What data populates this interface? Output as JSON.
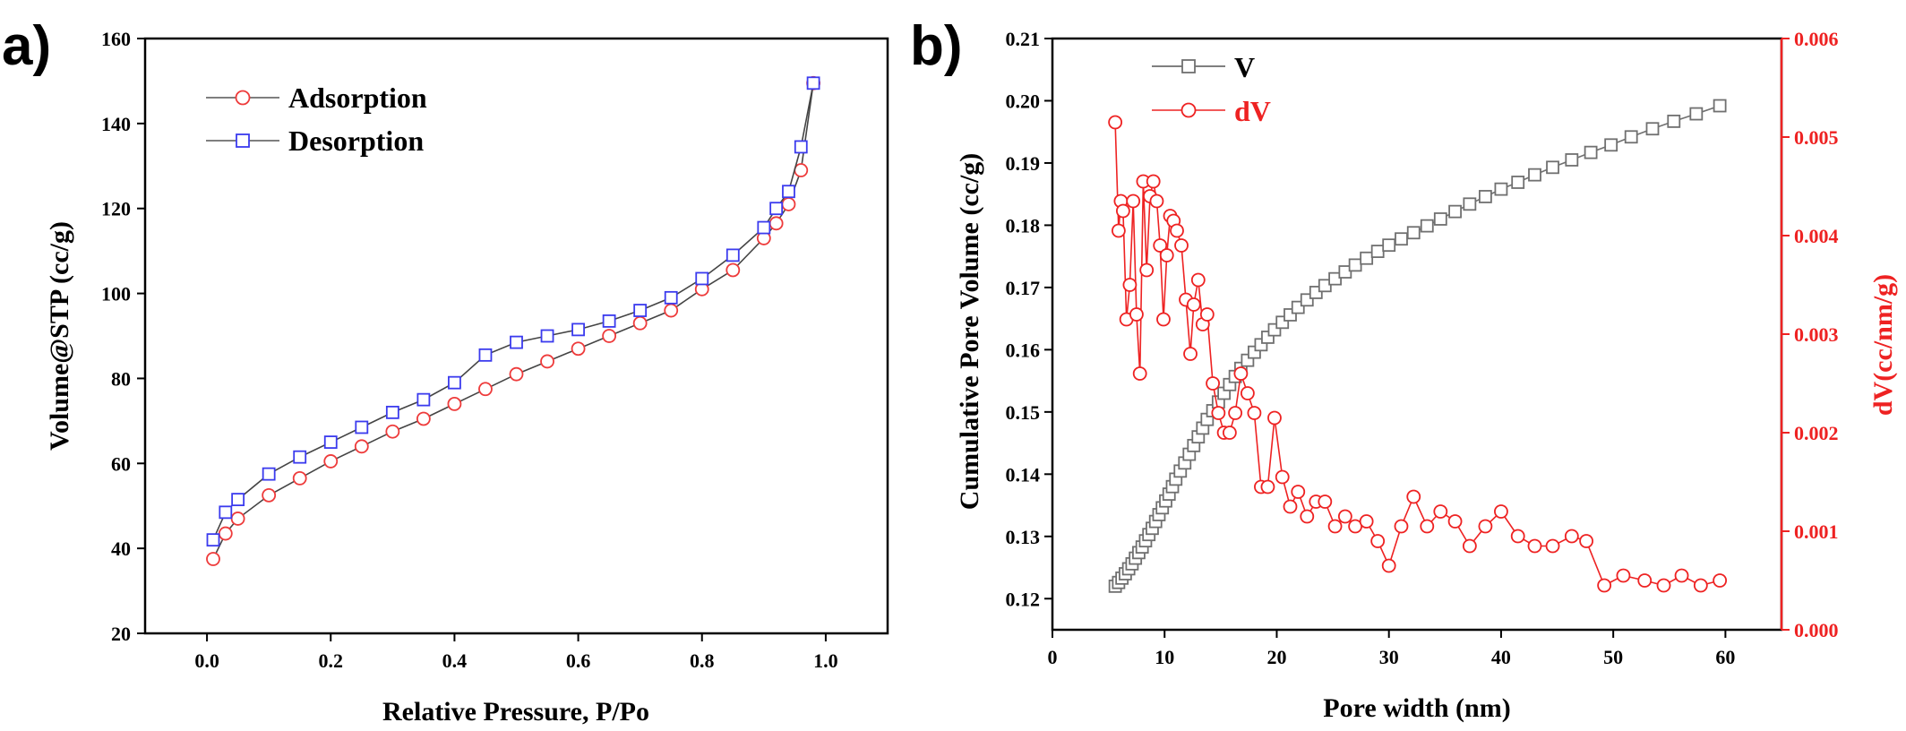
{
  "colors": {
    "adsorption": "#ee3b3b",
    "desorption": "#3b3bee",
    "V": "#707070",
    "dV": "#ee2222",
    "axis": "#000000"
  },
  "chart_data": [
    {
      "panel_label": "a)",
      "type": "line",
      "xlabel": "Relative Pressure, P/Po",
      "ylabel": "Volume@STP (cc/g)",
      "xlim": [
        -0.1,
        1.1
      ],
      "ylim": [
        20,
        160
      ],
      "xticks": [
        0.0,
        0.2,
        0.4,
        0.6,
        0.8,
        1.0
      ],
      "xtick_labels": [
        "0.0",
        "0.2",
        "0.4",
        "0.6",
        "0.8",
        "1.0"
      ],
      "yticks": [
        20,
        40,
        60,
        80,
        100,
        120,
        140,
        160
      ],
      "ytick_labels": [
        "20",
        "40",
        "60",
        "80",
        "100",
        "120",
        "140",
        "160"
      ],
      "legend_position": "top-left",
      "series": [
        {
          "name": "Adsorption",
          "marker": "circle",
          "x": [
            0.01,
            0.03,
            0.05,
            0.1,
            0.15,
            0.2,
            0.25,
            0.3,
            0.35,
            0.4,
            0.45,
            0.5,
            0.55,
            0.6,
            0.65,
            0.7,
            0.75,
            0.8,
            0.85,
            0.9,
            0.92,
            0.94,
            0.96,
            0.98
          ],
          "y": [
            37.5,
            43.5,
            47,
            52.5,
            56.5,
            60.5,
            64,
            67.5,
            70.5,
            74,
            77.5,
            81,
            84,
            87,
            90,
            93,
            96,
            101,
            105.5,
            113,
            116.5,
            121,
            129,
            149.5
          ]
        },
        {
          "name": "Desorption",
          "marker": "square",
          "x": [
            0.98,
            0.96,
            0.94,
            0.92,
            0.9,
            0.85,
            0.8,
            0.75,
            0.7,
            0.65,
            0.6,
            0.55,
            0.5,
            0.45,
            0.4,
            0.35,
            0.3,
            0.25,
            0.2,
            0.15,
            0.1,
            0.05,
            0.03,
            0.01
          ],
          "y": [
            149.5,
            134.5,
            124,
            120,
            115.5,
            109,
            103.5,
            99,
            96,
            93.5,
            91.5,
            90,
            88.5,
            85.5,
            79,
            75,
            72,
            68.5,
            65,
            61.5,
            57.5,
            51.5,
            48.5,
            42
          ]
        }
      ]
    },
    {
      "panel_label": "b)",
      "type": "line",
      "xlabel": "Pore width (nm)",
      "ylabel": "Cumulative Pore Volume (cc/g)",
      "y2label": "dV(cc/nm/g)",
      "xlim": [
        0,
        65
      ],
      "ylim": [
        0.115,
        0.21
      ],
      "y2lim": [
        0,
        0.006
      ],
      "xticks": [
        0,
        10,
        20,
        30,
        40,
        50,
        60
      ],
      "xtick_labels": [
        "0",
        "10",
        "20",
        "30",
        "40",
        "50",
        "60"
      ],
      "yticks": [
        0.12,
        0.13,
        0.14,
        0.15,
        0.16,
        0.17,
        0.18,
        0.19,
        0.2,
        0.21
      ],
      "ytick_labels": [
        "0.12",
        "0.13",
        "0.14",
        "0.15",
        "0.16",
        "0.17",
        "0.18",
        "0.19",
        "0.20",
        "0.21"
      ],
      "y2ticks": [
        0,
        0.001,
        0.002,
        0.003,
        0.004,
        0.005,
        0.006
      ],
      "y2tick_labels": [
        "0.000",
        "0.001",
        "0.002",
        "0.003",
        "0.004",
        "0.005",
        "0.006"
      ],
      "legend_position": "top-left",
      "series": [
        {
          "name": "V",
          "marker": "square",
          "axis": "left",
          "x": [
            5.6,
            5.9,
            6.2,
            6.5,
            6.8,
            7.1,
            7.4,
            7.7,
            8.0,
            8.3,
            8.6,
            8.9,
            9.2,
            9.5,
            9.8,
            10.1,
            10.4,
            10.7,
            11.0,
            11.4,
            11.8,
            12.2,
            12.6,
            13.0,
            13.4,
            13.8,
            14.3,
            14.8,
            15.3,
            15.8,
            16.3,
            16.8,
            17.4,
            18.0,
            18.6,
            19.2,
            19.8,
            20.5,
            21.2,
            21.9,
            22.7,
            23.5,
            24.3,
            25.2,
            26.1,
            27.0,
            28.0,
            29.0,
            30.0,
            31.1,
            32.2,
            33.4,
            34.6,
            35.9,
            37.2,
            38.6,
            40.0,
            41.5,
            43.0,
            44.6,
            46.3,
            48.0,
            49.8,
            51.6,
            53.5,
            55.4,
            57.4,
            59.5
          ],
          "y": [
            0.122,
            0.1226,
            0.1233,
            0.124,
            0.1248,
            0.1256,
            0.1265,
            0.1274,
            0.1283,
            0.1293,
            0.1303,
            0.1313,
            0.1324,
            0.1335,
            0.1346,
            0.1357,
            0.1368,
            0.138,
            0.1392,
            0.1405,
            0.1418,
            0.1432,
            0.1446,
            0.146,
            0.1474,
            0.1488,
            0.1502,
            0.1516,
            0.153,
            0.1544,
            0.1557,
            0.157,
            0.1583,
            0.1596,
            0.1608,
            0.162,
            0.1632,
            0.1644,
            0.1656,
            0.1668,
            0.168,
            0.1692,
            0.1703,
            0.1714,
            0.1725,
            0.1736,
            0.1747,
            0.1758,
            0.1768,
            0.1778,
            0.1788,
            0.1799,
            0.181,
            0.1822,
            0.1834,
            0.1846,
            0.1858,
            0.1869,
            0.1881,
            0.1893,
            0.1905,
            0.1917,
            0.1929,
            0.1942,
            0.1955,
            0.1967,
            0.1979,
            0.1992
          ]
        },
        {
          "name": "dV",
          "marker": "circle",
          "axis": "right",
          "x": [
            5.6,
            5.9,
            6.1,
            6.3,
            6.6,
            6.9,
            7.2,
            7.5,
            7.8,
            8.1,
            8.4,
            8.7,
            9.0,
            9.3,
            9.6,
            9.9,
            10.2,
            10.5,
            10.8,
            11.1,
            11.5,
            11.9,
            12.3,
            12.6,
            13.0,
            13.4,
            13.8,
            14.3,
            14.8,
            15.3,
            15.8,
            16.3,
            16.8,
            17.4,
            18.0,
            18.6,
            19.2,
            19.8,
            20.5,
            21.2,
            21.9,
            22.7,
            23.5,
            24.3,
            25.2,
            26.1,
            27.0,
            28.0,
            29.0,
            30.0,
            31.1,
            32.2,
            33.4,
            34.6,
            35.9,
            37.2,
            38.6,
            40.0,
            41.5,
            43.0,
            44.6,
            46.3,
            47.6,
            49.2,
            50.9,
            52.8,
            54.5,
            56.1,
            57.8,
            59.5
          ],
          "y": [
            0.00515,
            0.00405,
            0.00435,
            0.00425,
            0.00315,
            0.0035,
            0.00435,
            0.0032,
            0.0026,
            0.00455,
            0.00365,
            0.0044,
            0.00455,
            0.00435,
            0.0039,
            0.00315,
            0.0038,
            0.0042,
            0.00415,
            0.00405,
            0.0039,
            0.00335,
            0.0028,
            0.0033,
            0.00355,
            0.0031,
            0.0032,
            0.0025,
            0.0022,
            0.002,
            0.002,
            0.0022,
            0.0026,
            0.0024,
            0.0022,
            0.00145,
            0.00145,
            0.00215,
            0.00155,
            0.00125,
            0.0014,
            0.00115,
            0.0013,
            0.0013,
            0.00105,
            0.00115,
            0.00105,
            0.0011,
            0.0009,
            0.00065,
            0.00105,
            0.00135,
            0.00105,
            0.0012,
            0.0011,
            0.00085,
            0.00105,
            0.0012,
            0.00095,
            0.00085,
            0.00085,
            0.00095,
            0.0009,
            0.00045,
            0.00055,
            0.0005,
            0.00045,
            0.00055,
            0.00045,
            0.0005
          ]
        }
      ]
    }
  ]
}
